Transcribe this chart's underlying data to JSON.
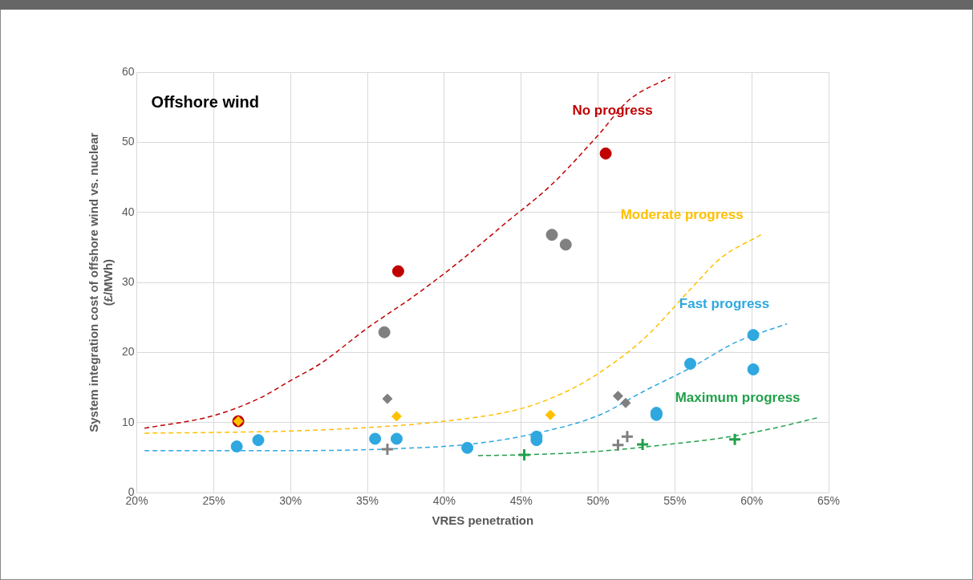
{
  "chart_data": {
    "type": "scatter",
    "xlabel": "VRES penetration",
    "ylabel": "System integration cost of offshore wind vs. nuclear\n(£/MWh)",
    "annotations": [
      "Offshore wind"
    ],
    "xlim": [
      20,
      65
    ],
    "xticks": [
      {
        "value": 20,
        "label": "20%"
      },
      {
        "value": 25,
        "label": "25%"
      },
      {
        "value": 30,
        "label": "30%"
      },
      {
        "value": 35,
        "label": "35%"
      },
      {
        "value": 40,
        "label": "40%"
      },
      {
        "value": 45,
        "label": "45%"
      },
      {
        "value": 50,
        "label": "50%"
      },
      {
        "value": 55,
        "label": "55%"
      },
      {
        "value": 60,
        "label": "60%"
      },
      {
        "value": 65,
        "label": "65%"
      }
    ],
    "ylim": [
      0,
      60
    ],
    "yticks": [
      0,
      10,
      20,
      30,
      40,
      50,
      60
    ],
    "grid": true,
    "series": [
      {
        "name": "No progress",
        "type": "line",
        "marker": "none",
        "line_style": "dashed",
        "color": "#c00000",
        "x": [
          20.5,
          25,
          28,
          30,
          32,
          35,
          38,
          41,
          44,
          47,
          50,
          52,
          54.7
        ],
        "values": [
          9.2,
          11,
          13.5,
          16,
          18.5,
          23.5,
          28,
          33,
          38.5,
          44,
          51,
          56,
          59.3
        ]
      },
      {
        "name": "Moderate progress",
        "type": "line",
        "marker": "none",
        "line_style": "dashed",
        "color": "#ffc000",
        "x": [
          20.5,
          25,
          30,
          35,
          40,
          45,
          48,
          50,
          53,
          56,
          58,
          60.6
        ],
        "values": [
          8.5,
          8.6,
          8.8,
          9.3,
          10.2,
          12,
          14.5,
          17,
          22,
          29,
          33.5,
          36.8
        ]
      },
      {
        "name": "Fast progress",
        "type": "line",
        "marker": "none",
        "line_style": "dashed",
        "color": "#2ea8df",
        "x": [
          20.5,
          25,
          30,
          37,
          42,
          46,
          50,
          53,
          56,
          59,
          62.3
        ],
        "values": [
          6,
          6,
          6,
          6.3,
          7,
          8.5,
          11,
          14.5,
          17.8,
          21.5,
          24.1
        ]
      },
      {
        "name": "Maximum progress",
        "type": "line",
        "marker": "none",
        "line_style": "dashed",
        "color": "#22a04b",
        "x": [
          42.2,
          45,
          50,
          55,
          58,
          61,
          64.3
        ],
        "values": [
          5.3,
          5.4,
          5.9,
          7,
          7.8,
          9,
          10.7
        ]
      },
      {
        "marker": "circle",
        "color": "#808080",
        "x": [
          36.1,
          47,
          47.9
        ],
        "values": [
          22.9,
          36.8,
          35.4
        ]
      },
      {
        "marker": "diamond",
        "color": "#808080",
        "x": [
          36.3,
          51.3,
          51.8
        ],
        "values": [
          13.4,
          13.8,
          12.8
        ]
      },
      {
        "marker": "cross",
        "color": "#808080",
        "x": [
          36.3,
          51.3,
          51.9
        ],
        "values": [
          6.2,
          6.8,
          8
        ]
      },
      {
        "marker": "circle",
        "color": "#c00000",
        "x": [
          26.6,
          37,
          50.5
        ],
        "values": [
          10.2,
          31.6,
          48.4
        ]
      },
      {
        "marker": "diamond",
        "color": "#ffc000",
        "x": [
          26.6,
          36.9,
          46.9
        ],
        "values": [
          10.2,
          10.9,
          11.1
        ]
      },
      {
        "marker": "circle",
        "color": "#2ea8df",
        "x": [
          26.5,
          27.9,
          35.5,
          36.9,
          41.5,
          46,
          46,
          53.8,
          53.8,
          56,
          60.1,
          60.1
        ],
        "values": [
          6.6,
          7.5,
          7.7,
          7.7,
          6.4,
          7.5,
          8,
          11.1,
          11.4,
          18.4,
          22.5,
          17.6
        ]
      },
      {
        "marker": "cross",
        "color": "#22a04b",
        "x": [
          45.2,
          52.9,
          58.9
        ],
        "values": [
          5.4,
          6.9,
          7.6
        ]
      }
    ]
  }
}
